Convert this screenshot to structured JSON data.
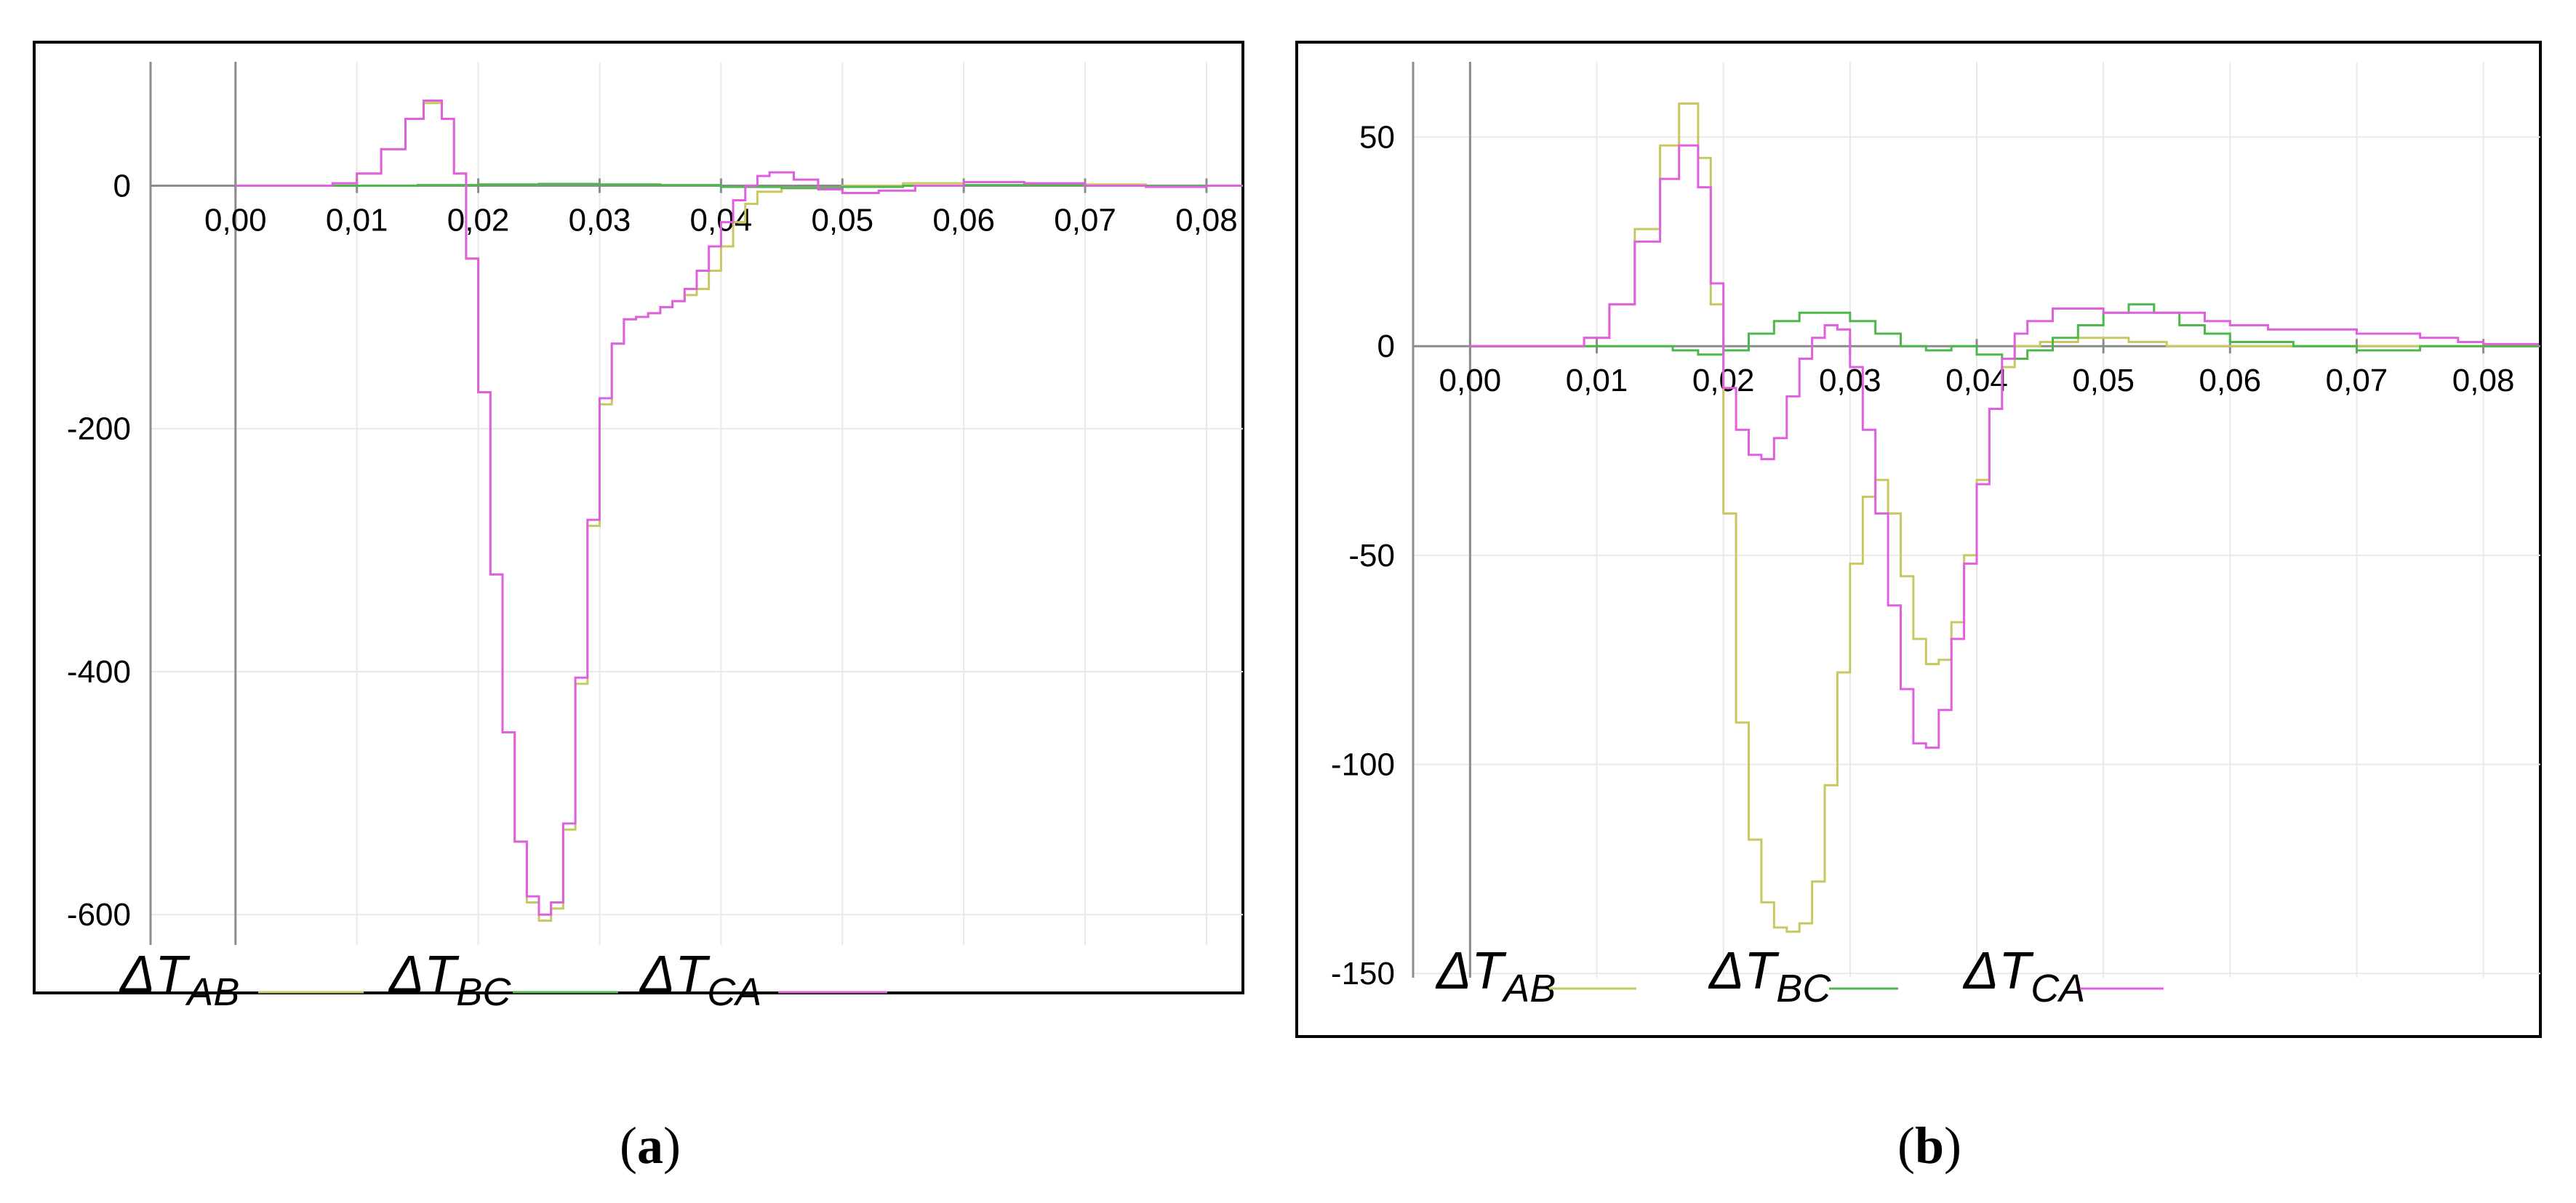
{
  "colors": {
    "ab": "#c8c862",
    "bc": "#4cb84c",
    "ca": "#df5fdf",
    "axis": "#8c8c8c",
    "grid": "#e9e9e9",
    "frame": "#000000"
  },
  "legend": {
    "delta": "ΔT",
    "ab_sub": "AB",
    "bc_sub": "BC",
    "ca_sub": "CA"
  },
  "captions": {
    "a": "a",
    "b": "b"
  },
  "chart_data": [
    {
      "panel": "a",
      "type": "line",
      "step": true,
      "xlim": [
        -0.007,
        0.083
      ],
      "ylim": [
        -625,
        102
      ],
      "xticks": [
        0,
        0.01,
        0.02,
        0.03,
        0.04,
        0.05,
        0.06,
        0.07,
        0.08
      ],
      "xtick_labels": [
        "0,00",
        "0,01",
        "0,02",
        "0,03",
        "0,04",
        "0,05",
        "0,06",
        "0,07",
        "0,08"
      ],
      "yticks": [
        0,
        -200,
        -400,
        -600
      ],
      "ytick_labels": [
        "0",
        "-200",
        "-400",
        "-600"
      ],
      "grid": true,
      "legend_position": "bottom-left",
      "series": [
        {
          "key": "ab",
          "x": [
            0,
            0.006,
            0.008,
            0.01,
            0.012,
            0.014,
            0.0155,
            0.017,
            0.018,
            0.019,
            0.02,
            0.021,
            0.022,
            0.023,
            0.024,
            0.025,
            0.026,
            0.027,
            0.028,
            0.029,
            0.03,
            0.031,
            0.032,
            0.033,
            0.034,
            0.035,
            0.036,
            0.037,
            0.038,
            0.039,
            0.04,
            0.041,
            0.042,
            0.043,
            0.045,
            0.05,
            0.055,
            0.06,
            0.065,
            0.07,
            0.075,
            0.08,
            0.083
          ],
          "y": [
            0,
            0,
            2,
            10,
            30,
            55,
            68,
            55,
            10,
            -60,
            -170,
            -320,
            -450,
            -540,
            -590,
            -605,
            -595,
            -530,
            -410,
            -280,
            -180,
            -130,
            -110,
            -108,
            -105,
            -100,
            -95,
            -90,
            -85,
            -70,
            -50,
            -30,
            -15,
            -5,
            -2,
            0,
            2,
            3,
            2,
            1,
            0,
            0,
            0
          ]
        },
        {
          "key": "bc",
          "x": [
            0,
            0.01,
            0.015,
            0.02,
            0.025,
            0.03,
            0.035,
            0.04,
            0.045,
            0.05,
            0.055,
            0.06,
            0.07,
            0.083
          ],
          "y": [
            0,
            0,
            0.5,
            1,
            1.5,
            1,
            0.5,
            -1,
            -2,
            -1,
            0,
            0.5,
            0,
            0
          ]
        },
        {
          "key": "ca",
          "x": [
            0,
            0.006,
            0.008,
            0.01,
            0.012,
            0.014,
            0.0155,
            0.017,
            0.018,
            0.019,
            0.02,
            0.021,
            0.022,
            0.023,
            0.024,
            0.025,
            0.026,
            0.027,
            0.028,
            0.029,
            0.03,
            0.031,
            0.032,
            0.033,
            0.034,
            0.035,
            0.036,
            0.037,
            0.038,
            0.039,
            0.04,
            0.041,
            0.042,
            0.043,
            0.044,
            0.046,
            0.048,
            0.05,
            0.053,
            0.056,
            0.06,
            0.065,
            0.07,
            0.075,
            0.08,
            0.083
          ],
          "y": [
            0,
            0,
            2,
            10,
            30,
            55,
            70,
            55,
            10,
            -60,
            -170,
            -320,
            -450,
            -540,
            -585,
            -600,
            -590,
            -525,
            -405,
            -275,
            -175,
            -130,
            -110,
            -108,
            -105,
            -100,
            -95,
            -85,
            -70,
            -50,
            -30,
            -12,
            0,
            8,
            11,
            5,
            -3,
            -6,
            -4,
            0,
            3,
            2,
            0,
            -1,
            0,
            0
          ]
        }
      ]
    },
    {
      "panel": "b",
      "type": "line",
      "step": true,
      "xlim": [
        -0.0045,
        0.0845
      ],
      "ylim": [
        -151,
        68
      ],
      "xticks": [
        0,
        0.01,
        0.02,
        0.03,
        0.04,
        0.05,
        0.06,
        0.07,
        0.08
      ],
      "xtick_labels": [
        "0,00",
        "0,01",
        "0,02",
        "0,03",
        "0,04",
        "0,05",
        "0,06",
        "0,07",
        "0,08"
      ],
      "yticks": [
        50,
        0,
        -50,
        -100,
        -150
      ],
      "ytick_labels": [
        "50",
        "0",
        "-50",
        "-100",
        "-150"
      ],
      "grid": true,
      "legend_position": "bottom-left",
      "series": [
        {
          "key": "ab",
          "x": [
            0,
            0.007,
            0.009,
            0.011,
            0.013,
            0.015,
            0.0165,
            0.018,
            0.019,
            0.02,
            0.021,
            0.022,
            0.023,
            0.024,
            0.025,
            0.026,
            0.027,
            0.028,
            0.029,
            0.03,
            0.031,
            0.032,
            0.033,
            0.034,
            0.035,
            0.036,
            0.037,
            0.038,
            0.039,
            0.04,
            0.041,
            0.042,
            0.043,
            0.045,
            0.048,
            0.05,
            0.052,
            0.055,
            0.06,
            0.065,
            0.07,
            0.075,
            0.08,
            0.0845
          ],
          "y": [
            0,
            0,
            2,
            10,
            28,
            48,
            58,
            45,
            10,
            -40,
            -90,
            -118,
            -133,
            -139,
            -140,
            -138,
            -128,
            -105,
            -78,
            -52,
            -36,
            -32,
            -40,
            -55,
            -70,
            -76,
            -75,
            -66,
            -50,
            -32,
            -15,
            -5,
            0,
            1,
            2,
            2,
            1,
            0,
            0,
            0,
            0,
            0,
            0,
            0
          ]
        },
        {
          "key": "bc",
          "x": [
            0,
            0.007,
            0.01,
            0.013,
            0.016,
            0.018,
            0.02,
            0.022,
            0.024,
            0.026,
            0.028,
            0.03,
            0.032,
            0.034,
            0.036,
            0.038,
            0.04,
            0.042,
            0.044,
            0.046,
            0.048,
            0.05,
            0.052,
            0.054,
            0.056,
            0.058,
            0.06,
            0.065,
            0.07,
            0.075,
            0.08,
            0.0845
          ],
          "y": [
            0,
            0,
            0,
            0,
            -1,
            -2,
            -1,
            3,
            6,
            8,
            8,
            6,
            3,
            0,
            -1,
            0,
            -2,
            -3,
            -1,
            2,
            5,
            8,
            10,
            8,
            5,
            3,
            1,
            0,
            -1,
            0,
            0,
            0
          ]
        },
        {
          "key": "ca",
          "x": [
            0,
            0.007,
            0.009,
            0.011,
            0.013,
            0.015,
            0.0165,
            0.018,
            0.019,
            0.02,
            0.021,
            0.022,
            0.023,
            0.024,
            0.025,
            0.026,
            0.027,
            0.028,
            0.029,
            0.03,
            0.031,
            0.032,
            0.033,
            0.034,
            0.035,
            0.036,
            0.037,
            0.038,
            0.039,
            0.04,
            0.041,
            0.042,
            0.043,
            0.044,
            0.046,
            0.048,
            0.05,
            0.052,
            0.055,
            0.058,
            0.06,
            0.063,
            0.066,
            0.07,
            0.075,
            0.078,
            0.08,
            0.0845
          ],
          "y": [
            0,
            0,
            2,
            10,
            25,
            40,
            48,
            38,
            15,
            -10,
            -20,
            -26,
            -27,
            -22,
            -12,
            -3,
            2,
            5,
            4,
            -5,
            -20,
            -40,
            -62,
            -82,
            -95,
            -96,
            -87,
            -70,
            -52,
            -33,
            -15,
            -3,
            3,
            6,
            9,
            9,
            8,
            8,
            8,
            6,
            5,
            4,
            4,
            3,
            2,
            1,
            0.5,
            0
          ]
        }
      ]
    }
  ]
}
